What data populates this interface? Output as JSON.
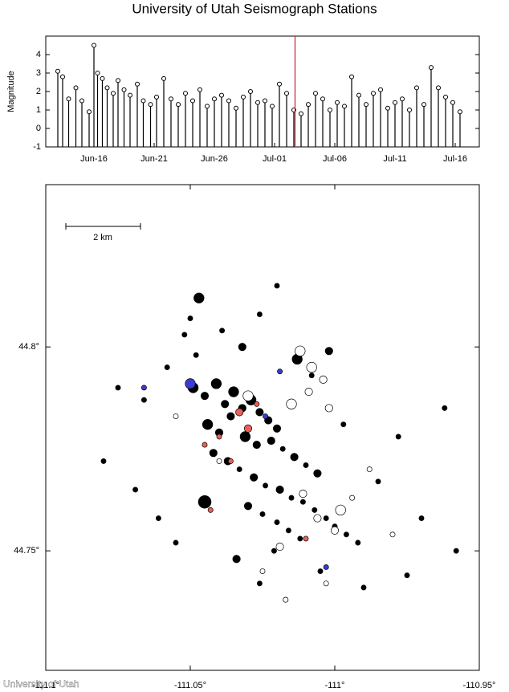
{
  "title": "University of Utah Seismograph Stations",
  "credit": "University of Utah",
  "chart_data": [
    {
      "type": "stem",
      "y_label": "Magnitude",
      "x": [
        1.0,
        1.4,
        1.9,
        2.5,
        3.0,
        3.6,
        4.0,
        4.3,
        4.7,
        5.1,
        5.6,
        6.0,
        6.5,
        7.0,
        7.6,
        8.1,
        8.7,
        9.2,
        9.8,
        10.4,
        11.0,
        11.6,
        12.2,
        12.8,
        13.4,
        14.0,
        14.6,
        15.2,
        15.8,
        16.4,
        17.0,
        17.6,
        18.2,
        18.8,
        19.4,
        20.0,
        20.6,
        21.2,
        21.8,
        22.4,
        23.0,
        23.6,
        24.2,
        24.8,
        25.4,
        26.0,
        26.6,
        27.2,
        27.8,
        28.4,
        29.0,
        29.6,
        30.2,
        30.8,
        31.4,
        32.0,
        32.6,
        33.2,
        33.8,
        34.4
      ],
      "values": [
        3.1,
        2.8,
        1.6,
        2.2,
        1.5,
        0.9,
        4.5,
        3.0,
        2.7,
        2.2,
        1.9,
        2.6,
        2.1,
        1.8,
        2.4,
        1.5,
        1.3,
        1.7,
        2.7,
        1.6,
        1.3,
        1.9,
        1.5,
        2.1,
        1.2,
        1.6,
        1.8,
        1.5,
        1.1,
        1.7,
        2.0,
        1.4,
        1.5,
        1.2,
        2.4,
        1.9,
        1.0,
        0.8,
        1.3,
        1.9,
        1.6,
        1.0,
        1.4,
        1.2,
        2.8,
        1.8,
        1.3,
        1.9,
        2.1,
        1.1,
        1.4,
        1.6,
        1.0,
        2.2,
        1.3,
        3.3,
        2.2,
        1.7,
        1.4,
        0.9
      ],
      "color": "#000000",
      "marker_color": "#ffffff",
      "reference_line": {
        "x": 20.7,
        "color": "#cc2222"
      },
      "xlim": [
        0,
        36
      ],
      "xticks": [
        {
          "value": 4,
          "label": "Jun-16"
        },
        {
          "value": 9,
          "label": "Jun-21"
        },
        {
          "value": 14,
          "label": "Jun-26"
        },
        {
          "value": 19,
          "label": "Jul-01"
        },
        {
          "value": 24,
          "label": "Jul-06"
        },
        {
          "value": 29,
          "label": "Jul-11"
        },
        {
          "value": 34,
          "label": "Jul-16"
        }
      ],
      "ylim": [
        -1,
        5
      ],
      "yticks": [
        -1,
        0,
        1,
        2,
        3,
        4
      ]
    },
    {
      "type": "scatter",
      "scale_bar_label": "2 km",
      "xlim": [
        -111.1,
        -110.95
      ],
      "ylim": [
        44.7207,
        44.8398
      ],
      "xticks": [
        {
          "value": -111.1,
          "label": "-111.1°"
        },
        {
          "value": -111.05,
          "label": "-111.05°"
        },
        {
          "value": -111,
          "label": "-111°"
        },
        {
          "value": -110.95,
          "label": "-110.95°"
        }
      ],
      "yticks": [
        {
          "value": 44.8,
          "label": "44.8°"
        },
        {
          "value": 44.75,
          "label": "44.75°"
        }
      ],
      "series": [
        {
          "color": "#000000",
          "x": [
            -111.049,
            -111.045,
            -111.041,
            -111.038,
            -111.035,
            -111.032,
            -111.029,
            -111.026,
            -111.023,
            -111.02,
            -111.044,
            -111.04,
            -111.036,
            -111.031,
            -111.027,
            -111.022,
            -111.018,
            -111.014,
            -111.01,
            -111.006,
            -111.042,
            -111.037,
            -111.033,
            -111.028,
            -111.024,
            -111.019,
            -111.015,
            -111.011,
            -111.007,
            -111.003,
            -111.0,
            -110.996,
            -110.992,
            -111.03,
            -111.025,
            -111.02,
            -111.016,
            -111.012,
            -111.048,
            -111.052,
            -111.058,
            -111.066,
            -111.075,
            -111.08,
            -111.069,
            -111.061,
            -111.055,
            -110.985,
            -110.978,
            -110.97,
            -110.962,
            -110.958,
            -110.975,
            -110.99,
            -111.005,
            -111.017,
            -111.026,
            -111.034,
            -111.045,
            -111.05,
            -111.047,
            -111.039,
            -111.032,
            -111.026,
            -111.02,
            -111.013,
            -111.008,
            -111.002,
            -110.997,
            -111.021
          ],
          "values": [
            44.79,
            44.788,
            44.791,
            44.786,
            44.789,
            44.785,
            44.787,
            44.784,
            44.782,
            44.78,
            44.781,
            44.779,
            44.783,
            44.778,
            44.776,
            44.777,
            44.775,
            44.773,
            44.771,
            44.769,
            44.774,
            44.772,
            44.77,
            44.768,
            44.766,
            44.765,
            44.763,
            44.762,
            44.76,
            44.758,
            44.756,
            44.754,
            44.752,
            44.761,
            44.759,
            44.757,
            44.755,
            44.753,
            44.798,
            44.803,
            44.795,
            44.787,
            44.79,
            44.772,
            44.765,
            44.758,
            44.752,
            44.767,
            44.778,
            44.758,
            44.785,
            44.75,
            44.744,
            44.741,
            44.745,
            44.738,
            44.742,
            44.748,
            44.762,
            44.807,
            44.812,
            44.804,
            44.8,
            44.808,
            44.815,
            44.797,
            44.793,
            44.799,
            44.781,
            44.75
          ],
          "sizes": [
            3,
            2,
            3,
            2,
            3,
            2,
            3,
            2,
            2,
            2,
            3,
            2,
            2,
            3,
            2,
            2,
            1,
            2,
            1,
            2,
            2,
            2,
            1,
            2,
            1,
            2,
            1,
            1,
            1,
            1,
            1,
            1,
            1,
            2,
            1,
            1,
            1,
            1,
            1,
            1,
            1,
            1,
            1,
            1,
            1,
            1,
            1,
            1,
            1,
            1,
            1,
            1,
            1,
            1,
            1,
            1,
            1,
            2,
            4,
            1,
            3,
            1,
            2,
            1,
            1,
            3,
            1,
            2,
            1,
            1
          ]
        },
        {
          "color": "#ffffff",
          "x": [
            -111.012,
            -111.008,
            -111.004,
            -111.009,
            -111.015,
            -111.002,
            -110.998,
            -111.006,
            -111.011,
            -111.0,
            -110.994,
            -111.019,
            -111.025,
            -111.03,
            -111.04,
            -111.055,
            -110.988,
            -110.98,
            -111.017,
            -111.003
          ],
          "values": [
            44.799,
            44.795,
            44.792,
            44.789,
            44.786,
            44.785,
            44.76,
            44.758,
            44.764,
            44.755,
            44.763,
            44.751,
            44.745,
            44.788,
            44.772,
            44.783,
            44.77,
            44.754,
            44.738,
            44.742
          ],
          "sizes": [
            3,
            3,
            2,
            2,
            3,
            2,
            3,
            2,
            2,
            2,
            1,
            2,
            1,
            3,
            1,
            1,
            1,
            1,
            1,
            1
          ]
        },
        {
          "color": "#e8605a",
          "x": [
            -111.033,
            -111.03,
            -111.04,
            -111.036,
            -111.027,
            -111.045,
            -111.01,
            -111.043
          ],
          "values": [
            44.784,
            44.78,
            44.778,
            44.772,
            44.786,
            44.776,
            44.753,
            44.76
          ],
          "sizes": [
            2,
            2,
            1,
            1,
            1,
            1,
            1,
            1
          ]
        },
        {
          "color": "#3b3bd6",
          "x": [
            -111.05,
            -111.024,
            -111.019,
            -111.066,
            -111.003
          ],
          "values": [
            44.791,
            44.783,
            44.794,
            44.79,
            44.746
          ],
          "sizes": [
            3,
            1,
            1,
            1,
            1
          ]
        }
      ]
    }
  ]
}
